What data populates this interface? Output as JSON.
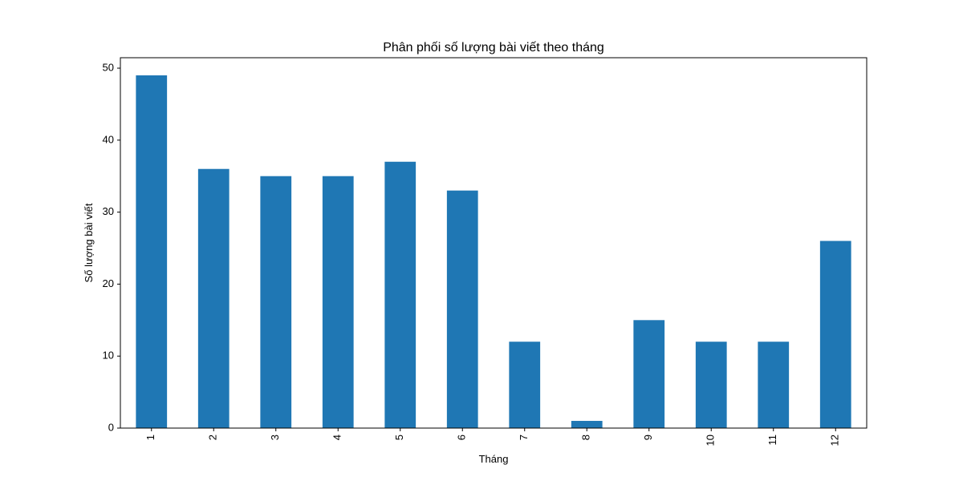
{
  "chart_data": {
    "type": "bar",
    "title": "Phân phối số lượng bài viết theo tháng",
    "xlabel": "Tháng",
    "ylabel": "Số lượng bài viết",
    "categories": [
      "1",
      "2",
      "3",
      "4",
      "5",
      "6",
      "7",
      "8",
      "9",
      "10",
      "11",
      "12"
    ],
    "values": [
      49,
      36,
      35,
      35,
      37,
      33,
      12,
      1,
      15,
      12,
      12,
      26
    ],
    "ylim": [
      0,
      51.45
    ],
    "yticks": [
      0,
      10,
      20,
      30,
      40,
      50
    ],
    "x_tick_rotation": "vertical",
    "grid": false,
    "legend": "none",
    "bar_color": "#1f77b4"
  }
}
